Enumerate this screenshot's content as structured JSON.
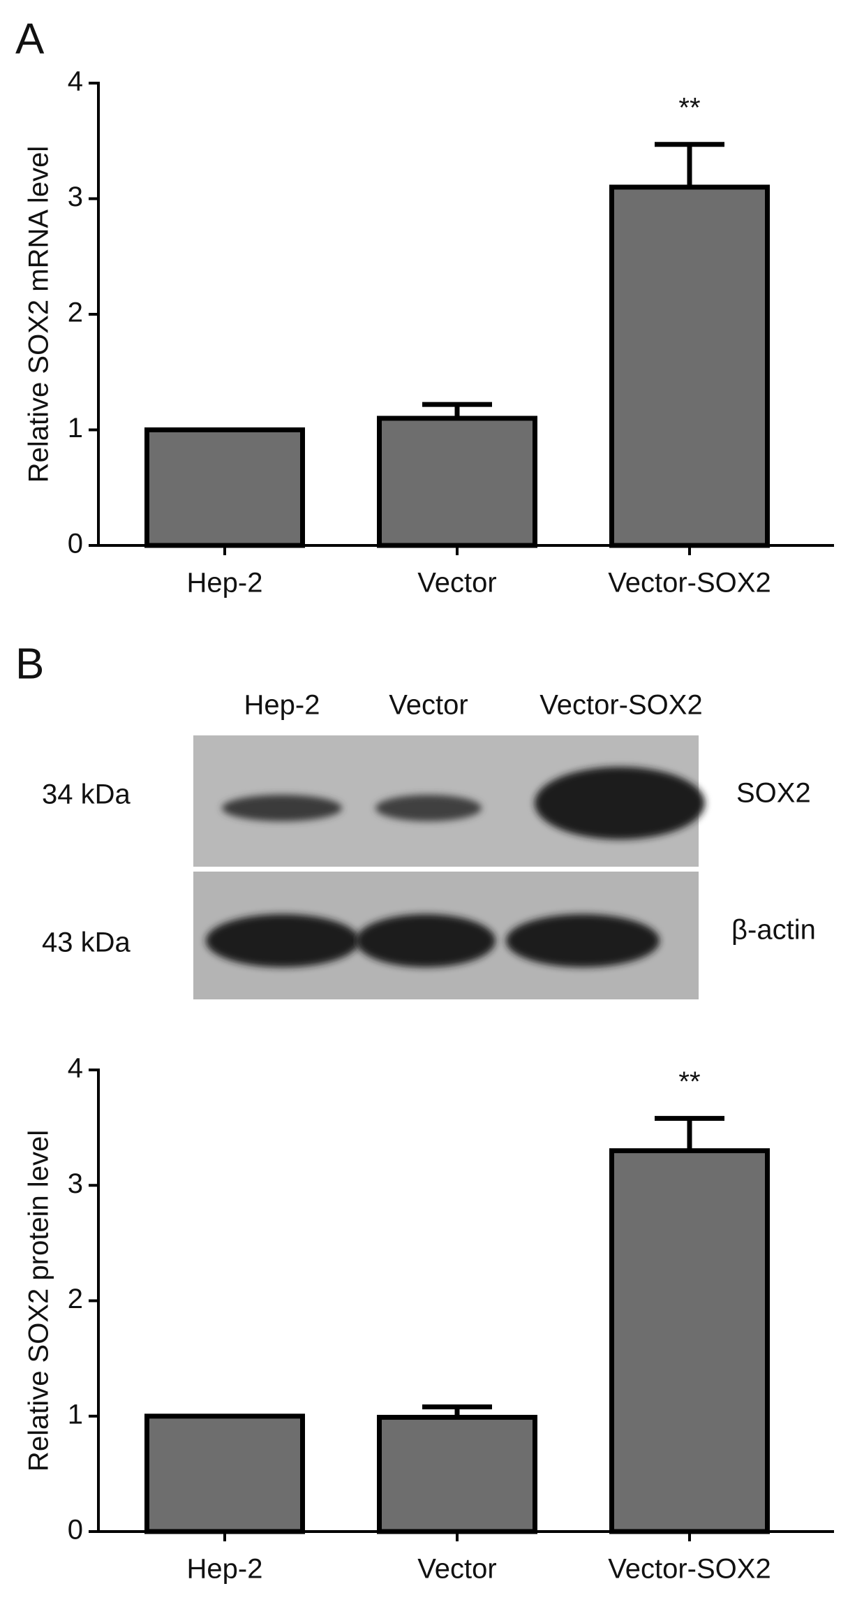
{
  "chart_data": [
    {
      "type": "bar",
      "panel_label": "A",
      "ylabel": "Relative SOX2 mRNA level",
      "categories": [
        "Hep-2",
        "Vector",
        "Vector-SOX2"
      ],
      "values": [
        1,
        1.1,
        3.1
      ],
      "errors": [
        null,
        0.12,
        0.37
      ],
      "annotations": [
        {
          "text": "**",
          "x": "Vector-SOX2"
        }
      ],
      "color": "#6e6e6e",
      "ylim": [
        0,
        4
      ],
      "yticks": [
        0,
        1,
        2,
        3,
        4
      ]
    },
    {
      "type": "bar",
      "ylabel": "Relative SOX2 protein level",
      "categories": [
        "Hep-2",
        "Vector",
        "Vector-SOX2"
      ],
      "values": [
        1,
        0.99,
        3.3
      ],
      "errors": [
        null,
        0.09,
        0.28
      ],
      "annotations": [
        {
          "text": "**",
          "x": "Vector-SOX2"
        }
      ],
      "color": "#6e6e6e",
      "ylim": [
        0,
        4
      ],
      "yticks": [
        0,
        1,
        2,
        3,
        4
      ]
    }
  ],
  "blot": {
    "panel_label": "B",
    "lanes": [
      "Hep-2",
      "Vector",
      "Vector-SOX2"
    ],
    "rows": [
      {
        "marker": "34 kDa",
        "protein": "SOX2"
      },
      {
        "marker": "43 kDa",
        "protein": "β-actin"
      }
    ]
  }
}
